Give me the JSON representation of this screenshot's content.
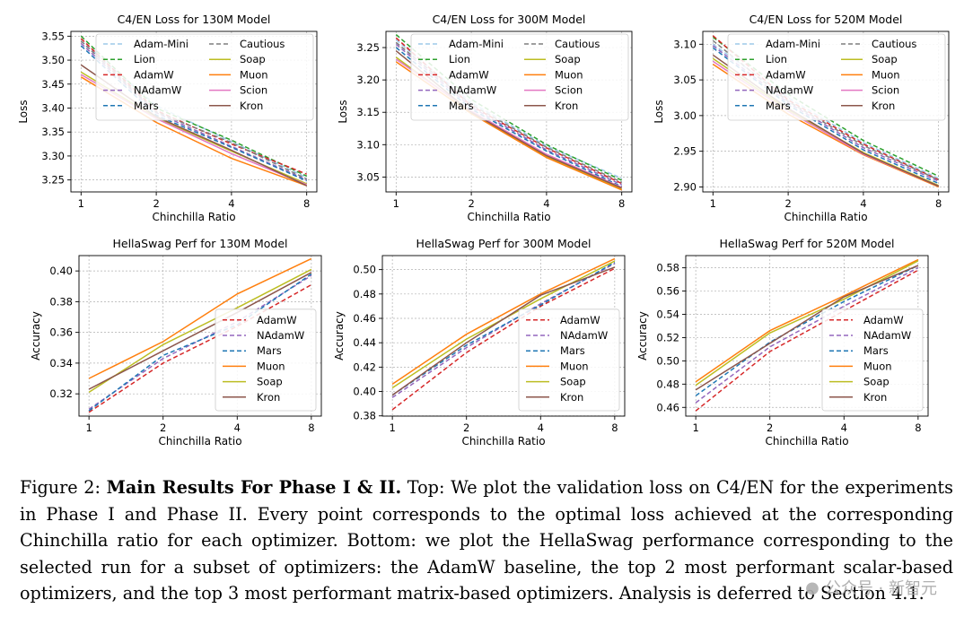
{
  "palette": {
    "Adam-Mini": "#9ecae9",
    "Lion": "#2ca02c",
    "AdamW": "#d62728",
    "NAdamW": "#9467bd",
    "Mars": "#1f77b4",
    "Cautious": "#7f7f7f",
    "Soap": "#bcbd22",
    "Muon": "#ff7f0e",
    "Scion": "#e377c2",
    "Kron": "#8c564b"
  },
  "dashed": [
    "Adam-Mini",
    "Lion",
    "AdamW",
    "NAdamW",
    "Mars",
    "Cautious"
  ],
  "chart_data": [
    {
      "type": "line",
      "title": "C4/EN Loss for 130M Model",
      "xlabel": "Chinchilla Ratio",
      "ylabel": "Loss",
      "x": [
        1,
        2,
        4,
        8
      ],
      "xticks": [
        "1",
        "2",
        "4",
        "8"
      ],
      "ylim": [
        3.225,
        3.56
      ],
      "yticks": [
        3.25,
        3.3,
        3.35,
        3.4,
        3.45,
        3.5,
        3.55
      ],
      "ytick_labels": [
        "3.25",
        "3.30",
        "3.35",
        "3.40",
        "3.45",
        "3.50",
        "3.55"
      ],
      "legend": "top-right",
      "legend_cols": 2,
      "series": [
        {
          "name": "Adam-Mini",
          "values": [
            3.54,
            3.405,
            3.33,
            3.255
          ]
        },
        {
          "name": "Lion",
          "values": [
            3.55,
            3.4,
            3.333,
            3.258
          ]
        },
        {
          "name": "AdamW",
          "values": [
            3.545,
            3.395,
            3.325,
            3.262
          ]
        },
        {
          "name": "NAdamW",
          "values": [
            3.535,
            3.39,
            3.32,
            3.25
          ]
        },
        {
          "name": "Mars",
          "values": [
            3.53,
            3.385,
            3.318,
            3.248
          ]
        },
        {
          "name": "Cautious",
          "values": [
            3.54,
            3.392,
            3.328,
            3.252
          ]
        },
        {
          "name": "Soap",
          "values": [
            3.475,
            3.38,
            3.31,
            3.242
          ]
        },
        {
          "name": "Muon",
          "values": [
            3.465,
            3.37,
            3.295,
            3.238
          ]
        },
        {
          "name": "Scion",
          "values": [
            3.47,
            3.378,
            3.305,
            3.24
          ]
        },
        {
          "name": "Kron",
          "values": [
            3.49,
            3.382,
            3.312,
            3.238
          ]
        }
      ]
    },
    {
      "type": "line",
      "title": "C4/EN Loss for 300M Model",
      "xlabel": "Chinchilla Ratio",
      "ylabel": "Loss",
      "x": [
        1,
        2,
        4,
        8
      ],
      "xticks": [
        "1",
        "2",
        "4",
        "8"
      ],
      "ylim": [
        3.027,
        3.275
      ],
      "yticks": [
        3.05,
        3.1,
        3.15,
        3.2,
        3.25
      ],
      "ytick_labels": [
        "3.05",
        "3.10",
        "3.15",
        "3.20",
        "3.25"
      ],
      "legend": "top-right",
      "legend_cols": 2,
      "series": [
        {
          "name": "Adam-Mini",
          "values": [
            3.262,
            3.165,
            3.098,
            3.048
          ]
        },
        {
          "name": "Lion",
          "values": [
            3.27,
            3.17,
            3.1,
            3.045
          ]
        },
        {
          "name": "AdamW",
          "values": [
            3.265,
            3.16,
            3.095,
            3.04
          ]
        },
        {
          "name": "NAdamW",
          "values": [
            3.255,
            3.158,
            3.092,
            3.038
          ]
        },
        {
          "name": "Mars",
          "values": [
            3.25,
            3.155,
            3.09,
            3.035
          ]
        },
        {
          "name": "Cautious",
          "values": [
            3.258,
            3.162,
            3.096,
            3.042
          ]
        },
        {
          "name": "Soap",
          "values": [
            3.235,
            3.15,
            3.082,
            3.032
          ]
        },
        {
          "name": "Muon",
          "values": [
            3.228,
            3.148,
            3.08,
            3.03
          ]
        },
        {
          "name": "Scion",
          "values": [
            3.232,
            3.152,
            3.085,
            3.034
          ]
        },
        {
          "name": "Kron",
          "values": [
            3.245,
            3.15,
            3.083,
            3.033
          ]
        }
      ]
    },
    {
      "type": "line",
      "title": "C4/EN Loss for 520M Model",
      "xlabel": "Chinchilla Ratio",
      "ylabel": "Loss",
      "x": [
        1,
        2,
        4,
        8
      ],
      "xticks": [
        "1",
        "2",
        "4",
        "8"
      ],
      "ylim": [
        2.893,
        3.118
      ],
      "yticks": [
        2.9,
        2.95,
        3.0,
        3.05,
        3.1
      ],
      "ytick_labels": [
        "2.90",
        "2.95",
        "3.00",
        "3.05",
        "3.10"
      ],
      "legend": "top-right",
      "legend_cols": 2,
      "series": [
        {
          "name": "Adam-Mini",
          "values": [
            3.1,
            3.025,
            2.962,
            2.912
          ]
        },
        {
          "name": "Lion",
          "values": [
            3.11,
            3.03,
            2.965,
            2.915
          ]
        },
        {
          "name": "AdamW",
          "values": [
            3.112,
            3.022,
            2.96,
            2.91
          ]
        },
        {
          "name": "NAdamW",
          "values": [
            3.098,
            3.018,
            2.955,
            2.908
          ]
        },
        {
          "name": "Mars",
          "values": [
            3.095,
            3.015,
            2.952,
            2.905
          ]
        },
        {
          "name": "Cautious",
          "values": [
            3.105,
            3.02,
            2.958,
            2.91
          ]
        },
        {
          "name": "Soap",
          "values": [
            3.08,
            3.008,
            2.948,
            2.902
          ]
        },
        {
          "name": "Muon",
          "values": [
            3.072,
            3.002,
            2.945,
            2.9
          ]
        },
        {
          "name": "Scion",
          "values": [
            3.076,
            3.006,
            2.946,
            2.901
          ]
        },
        {
          "name": "Kron",
          "values": [
            3.085,
            3.01,
            2.947,
            2.901
          ]
        }
      ]
    },
    {
      "type": "line",
      "title": "HellaSwag Perf for 130M Model",
      "xlabel": "Chinchilla Ratio",
      "ylabel": "Accuracy",
      "x": [
        1,
        2,
        4,
        8
      ],
      "xticks": [
        "1",
        "2",
        "4",
        "8"
      ],
      "ylim": [
        0.3055,
        0.41
      ],
      "yticks": [
        0.32,
        0.34,
        0.36,
        0.38,
        0.4
      ],
      "ytick_labels": [
        "0.32",
        "0.34",
        "0.36",
        "0.38",
        "0.40"
      ],
      "legend": "lower-right",
      "legend_cols": 1,
      "series": [
        {
          "name": "AdamW",
          "values": [
            0.308,
            0.34,
            0.364,
            0.391
          ]
        },
        {
          "name": "NAdamW",
          "values": [
            0.31,
            0.343,
            0.367,
            0.397
          ]
        },
        {
          "name": "Mars",
          "values": [
            0.309,
            0.345,
            0.365,
            0.398
          ]
        },
        {
          "name": "Muon",
          "values": [
            0.33,
            0.354,
            0.385,
            0.408
          ]
        },
        {
          "name": "Soap",
          "values": [
            0.321,
            0.352,
            0.376,
            0.401
          ]
        },
        {
          "name": "Kron",
          "values": [
            0.323,
            0.348,
            0.373,
            0.399
          ]
        }
      ]
    },
    {
      "type": "line",
      "title": "HellaSwag Perf for 300M Model",
      "xlabel": "Chinchilla Ratio",
      "ylabel": "Accuracy",
      "x": [
        1,
        2,
        4,
        8
      ],
      "xticks": [
        "1",
        "2",
        "4",
        "8"
      ],
      "ylim": [
        0.3798,
        0.5115
      ],
      "yticks": [
        0.38,
        0.4,
        0.42,
        0.44,
        0.46,
        0.48,
        0.5
      ],
      "ytick_labels": [
        "0.38",
        "0.40",
        "0.42",
        "0.44",
        "0.46",
        "0.48",
        "0.50"
      ],
      "legend": "lower-right",
      "legend_cols": 1,
      "series": [
        {
          "name": "AdamW",
          "values": [
            0.385,
            0.432,
            0.47,
            0.501
          ]
        },
        {
          "name": "NAdamW",
          "values": [
            0.395,
            0.436,
            0.472,
            0.505
          ]
        },
        {
          "name": "Mars",
          "values": [
            0.397,
            0.438,
            0.471,
            0.506
          ]
        },
        {
          "name": "Muon",
          "values": [
            0.406,
            0.447,
            0.48,
            0.509
          ]
        },
        {
          "name": "Soap",
          "values": [
            0.403,
            0.443,
            0.476,
            0.507
          ]
        },
        {
          "name": "Kron",
          "values": [
            0.397,
            0.44,
            0.479,
            0.502
          ]
        }
      ]
    },
    {
      "type": "line",
      "title": "HellaSwag Perf for 520M Model",
      "xlabel": "Chinchilla Ratio",
      "ylabel": "Accuracy",
      "x": [
        1,
        2,
        4,
        8
      ],
      "xticks": [
        "1",
        "2",
        "4",
        "8"
      ],
      "ylim": [
        0.4525,
        0.5905
      ],
      "yticks": [
        0.46,
        0.48,
        0.5,
        0.52,
        0.54,
        0.56,
        0.58
      ],
      "ytick_labels": [
        "0.46",
        "0.48",
        "0.50",
        "0.52",
        "0.54",
        "0.56",
        "0.58"
      ],
      "legend": "lower-right",
      "legend_cols": 1,
      "series": [
        {
          "name": "AdamW",
          "values": [
            0.457,
            0.508,
            0.543,
            0.578
          ]
        },
        {
          "name": "NAdamW",
          "values": [
            0.464,
            0.512,
            0.547,
            0.58
          ]
        },
        {
          "name": "Mars",
          "values": [
            0.47,
            0.516,
            0.551,
            0.582
          ]
        },
        {
          "name": "Muon",
          "values": [
            0.482,
            0.526,
            0.556,
            0.587
          ]
        },
        {
          "name": "Soap",
          "values": [
            0.479,
            0.524,
            0.553,
            0.586
          ]
        },
        {
          "name": "Kron",
          "values": [
            0.475,
            0.515,
            0.555,
            0.582
          ]
        }
      ]
    }
  ],
  "caption": {
    "figure_label": "Figure 2:",
    "lead": "Main Results For Phase I & II.",
    "text": "Top: We plot the validation loss on C4/EN for the experiments in Phase I and Phase II. Every point corresponds to the optimal loss achieved at the corresponding Chinchilla ratio for each optimizer. Bottom: we plot the HellaSwag performance corresponding to the selected run for a subset of optimizers: the AdamW baseline, the top 2 most performant scalar-based optimizers, and the top 3 most performant matrix-based optimizers. Analysis is deferred to Section 4.1."
  },
  "watermark": {
    "icon": "wechat-icon",
    "text": "公众号 · 新智元"
  }
}
